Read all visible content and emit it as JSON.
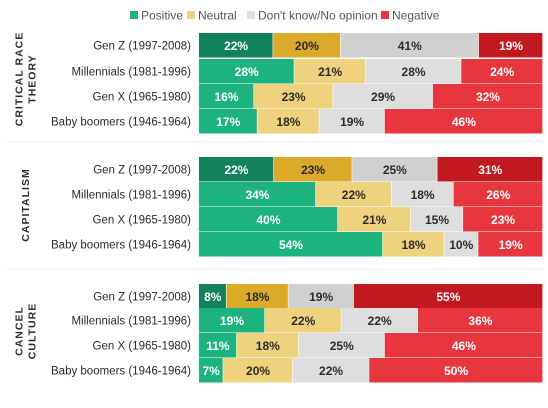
{
  "colors": {
    "positive": "#1db37f",
    "positive_dark": "#12825a",
    "neutral": "#efd27e",
    "neutral_dark": "#dcaa29",
    "dont_know": "#dedede",
    "dont_know_dark": "#d0d0d0",
    "negative": "#e8363f",
    "negative_dark": "#c2181f",
    "label_light": "#ffffff",
    "label_dark": "#2b2b2b"
  },
  "chart_data": {
    "type": "bar",
    "orientation": "horizontal",
    "stacked": "100%",
    "legend": [
      "Positive",
      "Neutral",
      "Don't know/No opinion",
      "Negative"
    ],
    "legend_position": "top",
    "groups": [
      {
        "name": "CRITICAL RACE THEORY",
        "name_lines": [
          "CRITICAL RACE",
          "THEORY"
        ],
        "categories": [
          "Gen Z (1997-2008)",
          "Millennials (1981-1996)",
          "Gen X (1965-1980)",
          "Baby boomers (1946-1964)"
        ],
        "values": [
          [
            22,
            20,
            41,
            19
          ],
          [
            28,
            21,
            28,
            24
          ],
          [
            16,
            23,
            29,
            32
          ],
          [
            17,
            18,
            19,
            46
          ]
        ],
        "labels": [
          [
            "22%",
            "20%",
            "41%",
            "19%"
          ],
          [
            "28%",
            "21%",
            "28%",
            "24%"
          ],
          [
            "16%",
            "23%",
            "29%",
            "32%"
          ],
          [
            "17%",
            "18%",
            "19%",
            "46%"
          ]
        ]
      },
      {
        "name": "CAPITALISM",
        "name_lines": [
          "CAPITALISM"
        ],
        "categories": [
          "Gen Z (1997-2008)",
          "Millennials (1981-1996)",
          "Gen X (1965-1980)",
          "Baby boomers (1946-1964)"
        ],
        "values": [
          [
            22,
            23,
            25,
            31
          ],
          [
            34,
            22,
            18,
            26
          ],
          [
            40,
            21,
            15,
            23
          ],
          [
            54,
            18,
            10,
            19
          ]
        ],
        "labels": [
          [
            "22%",
            "23%",
            "25%",
            "31%"
          ],
          [
            "34%",
            "22%",
            "18%",
            "26%"
          ],
          [
            "40%",
            "21%",
            "15%",
            "23%"
          ],
          [
            "54%",
            "18%",
            "10%",
            "19%"
          ]
        ]
      },
      {
        "name": "CANCEL CULTURE",
        "name_lines": [
          "CANCEL",
          "CULTURE"
        ],
        "categories": [
          "Gen Z (1997-2008)",
          "Millennials (1981-1996)",
          "Gen X (1965-1980)",
          "Baby boomers (1946-1964)"
        ],
        "values": [
          [
            8,
            18,
            19,
            55
          ],
          [
            19,
            22,
            22,
            36
          ],
          [
            11,
            18,
            25,
            46
          ],
          [
            7,
            20,
            22,
            50
          ]
        ],
        "labels": [
          [
            "8%",
            "18%",
            "19%",
            "55%"
          ],
          [
            "19%",
            "22%",
            "22%",
            "36%"
          ],
          [
            "11%",
            "18%",
            "25%",
            "46%"
          ],
          [
            "7%",
            "20%",
            "22%",
            "50%"
          ]
        ]
      }
    ]
  }
}
